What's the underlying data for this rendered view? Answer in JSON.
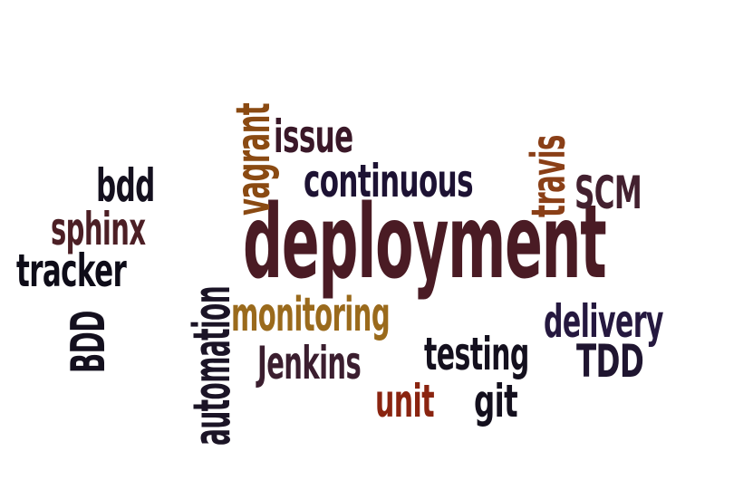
{
  "words": {
    "deployment": {
      "text": "deployment",
      "color": "#4a1b24"
    },
    "continuous": {
      "text": "continuous",
      "color": "#1d1233"
    },
    "issue": {
      "text": "issue",
      "color": "#3a1828"
    },
    "bdd": {
      "text": "bdd",
      "color": "#14101e"
    },
    "sphinx": {
      "text": "sphinx",
      "color": "#4c1f25"
    },
    "tracker": {
      "text": "tracker",
      "color": "#0e0c18"
    },
    "scm": {
      "text": "SCM",
      "color": "#43202f"
    },
    "monitoring": {
      "text": "monitoring",
      "color": "#9a6a1c"
    },
    "delivery": {
      "text": "delivery",
      "color": "#25183f"
    },
    "jenkins": {
      "text": "Jenkins",
      "color": "#3b1e2f"
    },
    "testing": {
      "text": "testing",
      "color": "#14101e"
    },
    "tdd": {
      "text": "TDD",
      "color": "#1f1530"
    },
    "unit": {
      "text": "unit",
      "color": "#8a2410"
    },
    "git": {
      "text": "git",
      "color": "#14101e"
    },
    "vagrant": {
      "text": "vagrant",
      "color": "#8a4a12"
    },
    "travis": {
      "text": "travis",
      "color": "#8a3f17"
    },
    "automation": {
      "text": "automation",
      "color": "#1b1426"
    },
    "bdd_upper": {
      "text": "BDD",
      "color": "#14101e"
    }
  }
}
